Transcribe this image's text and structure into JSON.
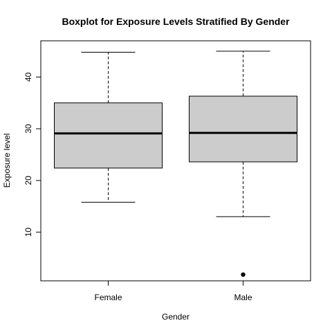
{
  "chart_data": {
    "type": "boxplot",
    "title": "Boxplot for Exposure Levels Stratified By Gender",
    "xlabel": "Gender",
    "ylabel": "Exposure level",
    "categories": [
      "Female",
      "Male"
    ],
    "ylim": [
      0.6,
      47
    ],
    "yticks": [
      10,
      20,
      30,
      40
    ],
    "grid": false,
    "boxes": [
      {
        "category": "Female",
        "whisker_low": 15.8,
        "q1": 22.4,
        "median": 29.1,
        "q3": 35.0,
        "whisker_high": 44.8,
        "outliers": []
      },
      {
        "category": "Male",
        "whisker_low": 13.0,
        "q1": 23.6,
        "median": 29.2,
        "q3": 36.3,
        "whisker_high": 45.0,
        "outliers": [
          1.8
        ]
      }
    ],
    "box_fill": "#cccccc"
  }
}
